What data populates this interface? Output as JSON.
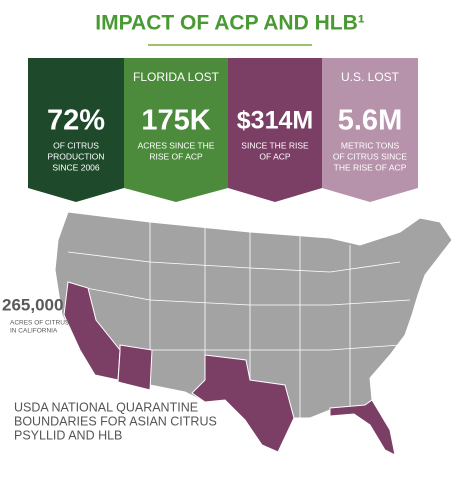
{
  "title": "IMPACT OF ACP AND HLB¹",
  "stats": [
    {
      "top": null,
      "value": "72%",
      "caption": [
        "OF CITRUS",
        "PRODUCTION",
        "SINCE 2006"
      ],
      "color": "#1e4a2b"
    },
    {
      "top": "FLORIDA LOST",
      "value": "175K",
      "caption": [
        "ACRES SINCE THE",
        "RISE OF ACP"
      ],
      "color": "#4d8b3c"
    },
    {
      "top": null,
      "value": "$314M",
      "caption": [
        "SINCE THE RISE",
        "OF ACP"
      ],
      "color": "#7b3e64"
    },
    {
      "top": "U.S. LOST",
      "value": "5.6M",
      "caption": [
        "METRIC TONS",
        "OF CITRUS SINCE",
        "THE RISE OF ACP"
      ],
      "color": "#b793ab"
    }
  ],
  "california": {
    "value": "265,000",
    "caption": [
      "ACRES OF CITRUS",
      "IN CALIFORNIA"
    ]
  },
  "map_caption": [
    "USDA NATIONAL QUARANTINE",
    "BOUNDARIES FOR ASIAN CITRUS",
    "PSYLLID AND HLB"
  ]
}
